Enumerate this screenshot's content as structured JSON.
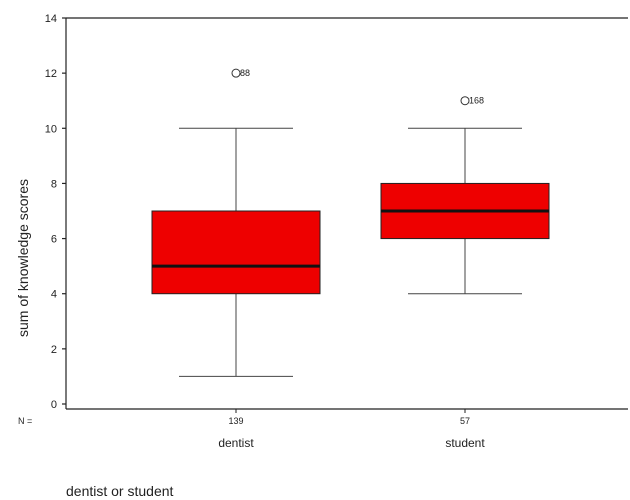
{
  "chart_data": {
    "type": "boxplot",
    "xlabel": "dentist or student",
    "ylabel": "sum of knowledge scores",
    "ylim": [
      0,
      14
    ],
    "yticks": [
      0,
      2,
      4,
      6,
      8,
      10,
      12,
      14
    ],
    "grid": false,
    "n_label": "N =",
    "box_color": "#ee0000",
    "groups": [
      {
        "category": "dentist",
        "n": "139",
        "whisker_low": 1,
        "q1": 4,
        "median": 5,
        "q3": 7,
        "whisker_high": 10,
        "outliers": [
          {
            "value": 12,
            "label": "88"
          }
        ]
      },
      {
        "category": "student",
        "n": "57",
        "whisker_low": 4,
        "q1": 6,
        "median": 7,
        "q3": 8,
        "whisker_high": 10,
        "outliers": [
          {
            "value": 11,
            "label": "168"
          }
        ]
      }
    ]
  }
}
